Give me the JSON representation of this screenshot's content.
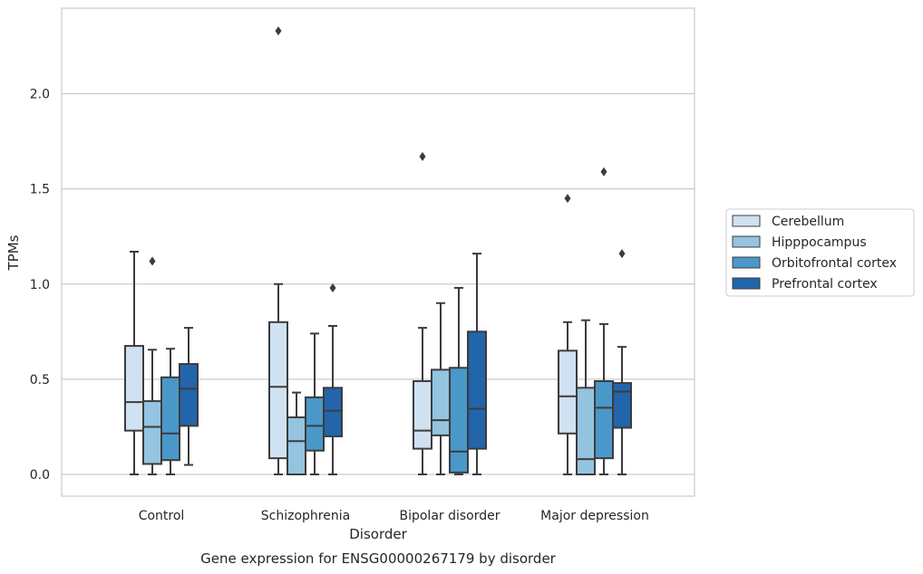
{
  "chart_data": {
    "type": "box",
    "title": "",
    "caption": "Gene expression for ENSG00000267179 by disorder",
    "xlabel": "Disorder",
    "ylabel": "TPMs",
    "ylim": [
      -0.11,
      2.45
    ],
    "yticks": [
      "0.0",
      "0.5",
      "1.0",
      "1.5",
      "2.0"
    ],
    "ytick_values": [
      0.0,
      0.5,
      1.0,
      1.5,
      2.0
    ],
    "grid": "horizontal",
    "legend_position": "right",
    "categories": [
      "Control",
      "Schizophrenia",
      "Bipolar disorder",
      "Major depression"
    ],
    "series": [
      {
        "name": "Cerebellum",
        "color": "#d0e1f2",
        "boxes": [
          {
            "whisker_low": 0.0,
            "q1": 0.23,
            "median": 0.38,
            "q3": 0.675,
            "whisker_high": 1.17,
            "outliers": []
          },
          {
            "whisker_low": 0.0,
            "q1": 0.085,
            "median": 0.46,
            "q3": 0.8,
            "whisker_high": 1.0,
            "outliers": [
              2.33
            ]
          },
          {
            "whisker_low": 0.0,
            "q1": 0.135,
            "median": 0.23,
            "q3": 0.49,
            "whisker_high": 0.77,
            "outliers": [
              1.67
            ]
          },
          {
            "whisker_low": 0.0,
            "q1": 0.215,
            "median": 0.41,
            "q3": 0.65,
            "whisker_high": 0.8,
            "outliers": [
              1.45
            ]
          }
        ]
      },
      {
        "name": "Hipppocampus",
        "color": "#94c4df",
        "boxes": [
          {
            "whisker_low": 0.0,
            "q1": 0.055,
            "median": 0.25,
            "q3": 0.385,
            "whisker_high": 0.655,
            "outliers": [
              1.12
            ]
          },
          {
            "whisker_low": 0.0,
            "q1": 0.0,
            "median": 0.175,
            "q3": 0.3,
            "whisker_high": 0.43,
            "outliers": []
          },
          {
            "whisker_low": 0.0,
            "q1": 0.205,
            "median": 0.285,
            "q3": 0.55,
            "whisker_high": 0.9,
            "outliers": []
          },
          {
            "whisker_low": 0.0,
            "q1": 0.0,
            "median": 0.08,
            "q3": 0.455,
            "whisker_high": 0.81,
            "outliers": []
          }
        ]
      },
      {
        "name": "Orbitofrontal cortex",
        "color": "#4a98c9",
        "boxes": [
          {
            "whisker_low": 0.0,
            "q1": 0.075,
            "median": 0.215,
            "q3": 0.51,
            "whisker_high": 0.66,
            "outliers": []
          },
          {
            "whisker_low": 0.0,
            "q1": 0.125,
            "median": 0.255,
            "q3": 0.405,
            "whisker_high": 0.74,
            "outliers": []
          },
          {
            "whisker_low": 0.0,
            "q1": 0.01,
            "median": 0.12,
            "q3": 0.56,
            "whisker_high": 0.98,
            "outliers": []
          },
          {
            "whisker_low": 0.0,
            "q1": 0.085,
            "median": 0.35,
            "q3": 0.49,
            "whisker_high": 0.79,
            "outliers": [
              1.59
            ]
          }
        ]
      },
      {
        "name": "Prefrontal cortex",
        "color": "#2265ab",
        "boxes": [
          {
            "whisker_low": 0.05,
            "q1": 0.255,
            "median": 0.45,
            "q3": 0.58,
            "whisker_high": 0.77,
            "outliers": []
          },
          {
            "whisker_low": 0.0,
            "q1": 0.2,
            "median": 0.335,
            "q3": 0.455,
            "whisker_high": 0.78,
            "outliers": [
              0.98
            ]
          },
          {
            "whisker_low": 0.0,
            "q1": 0.135,
            "median": 0.345,
            "q3": 0.75,
            "whisker_high": 1.16,
            "outliers": []
          },
          {
            "whisker_low": 0.0,
            "q1": 0.245,
            "median": 0.435,
            "q3": 0.48,
            "whisker_high": 0.67,
            "outliers": [
              1.16
            ]
          }
        ]
      }
    ]
  }
}
